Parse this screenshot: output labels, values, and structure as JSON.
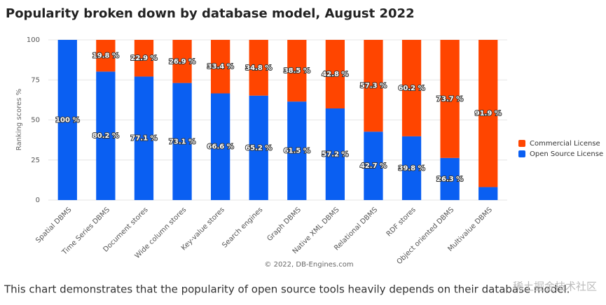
{
  "chart_data": {
    "type": "stacked_bar",
    "title": "Popularity broken down by database model, August 2022",
    "y_label": "Ranking scores %",
    "categories": [
      "Spatial DBMS",
      "Time Series DBMS",
      "Document stores",
      "Wide column stores",
      "Key-value stores",
      "Search engines",
      "Graph DBMS",
      "Native XML DBMS",
      "Relational DBMS",
      "RDF stores",
      "Object oriented DBMS",
      "Multivalue DBMS"
    ],
    "series": [
      {
        "name": "Commercial License",
        "color": "#ff4500",
        "values": [
          0,
          19.8,
          22.9,
          26.9,
          33.4,
          34.8,
          38.5,
          42.8,
          57.3,
          60.2,
          73.7,
          91.9
        ],
        "value_labels": [
          null,
          "19.8 %",
          "22.9 %",
          "26.9 %",
          "33.4 %",
          "34.8 %",
          "38.5 %",
          "42.8 %",
          "57.3 %",
          "60.2 %",
          "73.7 %",
          "91.9 %"
        ]
      },
      {
        "name": "Open Source License",
        "color": "#0a5ff2",
        "values": [
          100,
          80.2,
          77.1,
          73.1,
          66.6,
          65.2,
          61.5,
          57.2,
          42.7,
          39.8,
          26.3,
          8.1
        ],
        "value_labels": [
          "100 %",
          "80.2 %",
          "77.1 %",
          "73.1 %",
          "66.6 %",
          "65.2 %",
          "61.5 %",
          "57.2 %",
          "42.7 %",
          "39.8 %",
          "26.3 %",
          null
        ]
      }
    ],
    "ylim": [
      0,
      100
    ],
    "yticks": [
      0,
      25,
      50,
      75,
      100
    ],
    "grid": true,
    "legend": "right",
    "credit": "© 2022, DB-Engines.com"
  },
  "caption": "This chart demonstrates that the popularity of open source tools heavily depends on their database model.",
  "watermark": "稀土掘金技术社区"
}
